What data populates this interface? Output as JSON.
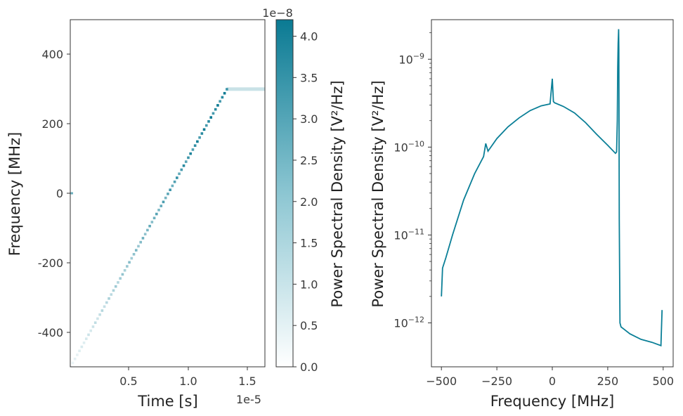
{
  "colors": {
    "series": "#0a7f97",
    "accent_dark": "#0a7a93",
    "axis": "#333333",
    "text": "#3a3a3a"
  },
  "chart_data": [
    {
      "type": "heatmap",
      "xlabel": "Time [s]",
      "ylabel": "Frequency [MHz]",
      "x_scale_label": "1e-5",
      "x_ticks": [
        "0.5",
        "1.0",
        "1.5"
      ],
      "y_ticks": [
        "400",
        "200",
        "0",
        "-200",
        "-400"
      ],
      "xlim": [
        2e-07,
        1.65e-05
      ],
      "ylim": [
        -500,
        500
      ],
      "description_shape": "chirp",
      "chirp": {
        "t_start": 2e-07,
        "t_end": 1.33e-05,
        "f_start": -500,
        "f_end": 300,
        "hold_until": 1.65e-05
      },
      "intensity_range": [
        0.0,
        4.2e-08
      ]
    },
    {
      "type": "colorbar",
      "label": "Power Spectral Density [V²/Hz]",
      "scale_label": "1e−8",
      "ticks": [
        "0.0",
        "0.5",
        "1.0",
        "1.5",
        "2.0",
        "2.5",
        "3.0",
        "3.5",
        "4.0"
      ],
      "range": [
        0.0,
        4.2
      ]
    },
    {
      "type": "line",
      "xlabel": "Frequency [MHz]",
      "ylabel": "Power Spectral Density [V²/Hz]",
      "x_ticks": [
        "−500",
        "−250",
        "0",
        "250",
        "500"
      ],
      "y_ticks": [
        "10^-9",
        "10^-10",
        "10^-11",
        "10^-12"
      ],
      "xlim": [
        -545,
        545
      ],
      "ylim_log10": [
        -12.5,
        -8.55
      ],
      "yscale": "log",
      "series": [
        {
          "x": [
            -500,
            -495,
            -480,
            -450,
            -400,
            -350,
            -310,
            -300,
            -290,
            -250,
            -200,
            -150,
            -100,
            -50,
            -10,
            0,
            5,
            10,
            50,
            100,
            150,
            200,
            250,
            285,
            290,
            293,
            295,
            297,
            299,
            300,
            302,
            305,
            310,
            350,
            400,
            450,
            490,
            495
          ],
          "y": [
            2e-12,
            4.2e-12,
            5.5e-12,
            1e-11,
            2.5e-11,
            5e-11,
            7.8e-11,
            1.1e-10,
            9e-11,
            1.25e-10,
            1.7e-10,
            2.15e-10,
            2.6e-10,
            2.95e-10,
            3.1e-10,
            6e-10,
            3.3e-10,
            3.2e-10,
            2.9e-10,
            2.45e-10,
            1.9e-10,
            1.4e-10,
            1.05e-10,
            8.5e-11,
            8.8e-11,
            2e-10,
            8e-10,
            1.5e-09,
            2.2e-09,
            1.3e-09,
            1.5e-11,
            1e-12,
            9e-13,
            7.5e-13,
            6.5e-13,
            6e-13,
            5.5e-13,
            1.4e-12
          ]
        }
      ]
    }
  ]
}
